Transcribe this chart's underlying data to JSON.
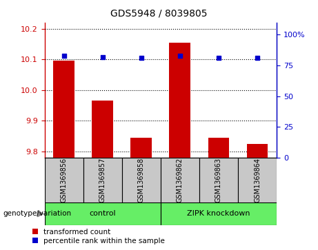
{
  "title": "GDS5948 / 8039805",
  "categories": [
    "GSM1369856",
    "GSM1369857",
    "GSM1369858",
    "GSM1369862",
    "GSM1369863",
    "GSM1369864"
  ],
  "bar_values": [
    10.095,
    9.965,
    9.845,
    10.155,
    9.845,
    9.825
  ],
  "percentile_values": [
    83,
    82,
    81,
    83,
    81,
    81
  ],
  "ylim_left": [
    9.78,
    10.22
  ],
  "ylim_right": [
    0,
    110
  ],
  "yticks_left": [
    9.8,
    9.9,
    10.0,
    10.1,
    10.2
  ],
  "yticks_right": [
    0,
    25,
    50,
    75,
    100
  ],
  "bar_color": "#cc0000",
  "dot_color": "#0000cc",
  "bar_bottom": 9.78,
  "group1_label": "control",
  "group2_label": "ZIPK knockdown",
  "group1_indices": [
    0,
    1,
    2
  ],
  "group2_indices": [
    3,
    4,
    5
  ],
  "group_bg_color": "#c8c8c8",
  "group_green_color": "#66ee66",
  "legend_bar_label": "transformed count",
  "legend_dot_label": "percentile rank within the sample",
  "genotype_label": "genotype/variation",
  "right_axis_color": "#0000cc",
  "left_axis_color": "#cc0000",
  "grid_color": "black",
  "fig_bg": "#ffffff",
  "title_fontsize": 10,
  "tick_fontsize": 8,
  "cat_fontsize": 7,
  "grp_fontsize": 8,
  "legend_fontsize": 7.5
}
